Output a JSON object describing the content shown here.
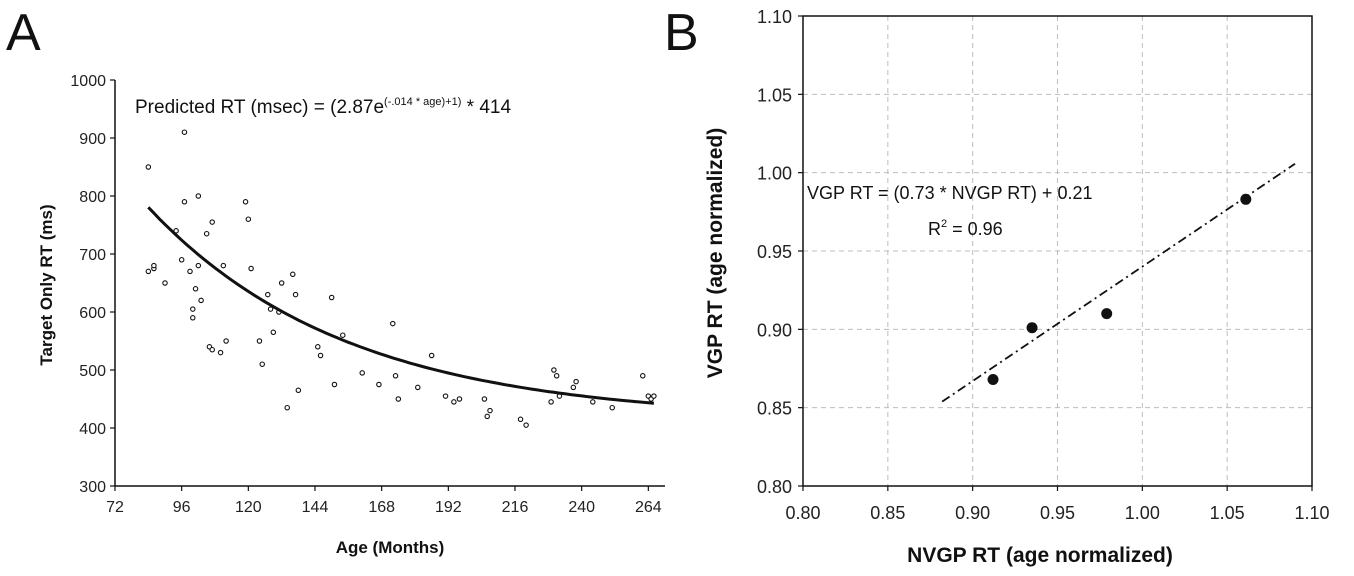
{
  "chart_data": [
    {
      "panel": "A",
      "type": "scatter",
      "xlabel": "Age (Months)",
      "ylabel": "Target Only RT (ms)",
      "xlim": [
        72,
        270
      ],
      "ylim": [
        300,
        1000
      ],
      "xticks": [
        "72",
        "96",
        "120",
        "144",
        "168",
        "192",
        "216",
        "240",
        "264"
      ],
      "yticks": [
        "300",
        "400",
        "500",
        "600",
        "700",
        "800",
        "900",
        "1000"
      ],
      "grid": false,
      "annotation": {
        "prefix": "Predicted RT (msec) = (2.87e",
        "exponent": "(-.014 * age)+1)",
        "suffix": " * 414"
      },
      "fit": {
        "a": 2.87,
        "k": -0.014,
        "scale": 414,
        "x_from": 84,
        "x_to": 266
      },
      "points": [
        [
          84,
          850
        ],
        [
          84,
          670
        ],
        [
          86,
          675
        ],
        [
          86,
          680
        ],
        [
          90,
          650
        ],
        [
          94,
          740
        ],
        [
          96,
          690
        ],
        [
          97,
          910
        ],
        [
          97,
          790
        ],
        [
          99,
          670
        ],
        [
          100,
          605
        ],
        [
          100,
          590
        ],
        [
          101,
          640
        ],
        [
          102,
          680
        ],
        [
          102,
          800
        ],
        [
          103,
          620
        ],
        [
          105,
          735
        ],
        [
          106,
          540
        ],
        [
          107,
          535
        ],
        [
          107,
          755
        ],
        [
          110,
          530
        ],
        [
          111,
          680
        ],
        [
          112,
          550
        ],
        [
          119,
          790
        ],
        [
          120,
          760
        ],
        [
          121,
          675
        ],
        [
          124,
          550
        ],
        [
          125,
          510
        ],
        [
          127,
          630
        ],
        [
          128,
          605
        ],
        [
          129,
          565
        ],
        [
          131,
          600
        ],
        [
          132,
          650
        ],
        [
          134,
          435
        ],
        [
          136,
          665
        ],
        [
          137,
          630
        ],
        [
          138,
          465
        ],
        [
          145,
          540
        ],
        [
          146,
          525
        ],
        [
          150,
          625
        ],
        [
          151,
          475
        ],
        [
          154,
          560
        ],
        [
          161,
          495
        ],
        [
          167,
          475
        ],
        [
          172,
          580
        ],
        [
          173,
          490
        ],
        [
          174,
          450
        ],
        [
          181,
          470
        ],
        [
          186,
          525
        ],
        [
          191,
          455
        ],
        [
          194,
          445
        ],
        [
          196,
          450
        ],
        [
          205,
          450
        ],
        [
          206,
          420
        ],
        [
          207,
          430
        ],
        [
          218,
          415
        ],
        [
          220,
          405
        ],
        [
          229,
          445
        ],
        [
          230,
          500
        ],
        [
          231,
          490
        ],
        [
          232,
          455
        ],
        [
          237,
          470
        ],
        [
          238,
          480
        ],
        [
          244,
          445
        ],
        [
          251,
          435
        ],
        [
          262,
          490
        ],
        [
          264,
          455
        ],
        [
          265,
          450
        ],
        [
          266,
          455
        ]
      ]
    },
    {
      "panel": "B",
      "type": "scatter",
      "xlabel": "NVGP RT (age normalized)",
      "ylabel": "VGP RT (age normalized)",
      "xlim": [
        0.8,
        1.1
      ],
      "ylim": [
        0.8,
        1.1
      ],
      "xticks": [
        "0.80",
        "0.85",
        "0.90",
        "0.95",
        "1.00",
        "1.05",
        "1.10"
      ],
      "yticks": [
        "0.80",
        "0.85",
        "0.90",
        "0.95",
        "1.00",
        "1.05",
        "1.10"
      ],
      "grid": true,
      "equation": "VGP RT = (0.73 * NVGP RT) + 0.21",
      "r2": {
        "prefix": "R",
        "sup": "2",
        "suffix": " = 0.96"
      },
      "fit": {
        "slope": 0.73,
        "intercept": 0.21,
        "x_from": 0.882,
        "x_to": 1.09
      },
      "points": [
        [
          0.912,
          0.868
        ],
        [
          0.935,
          0.901
        ],
        [
          0.979,
          0.91
        ],
        [
          1.061,
          0.983
        ]
      ]
    }
  ]
}
